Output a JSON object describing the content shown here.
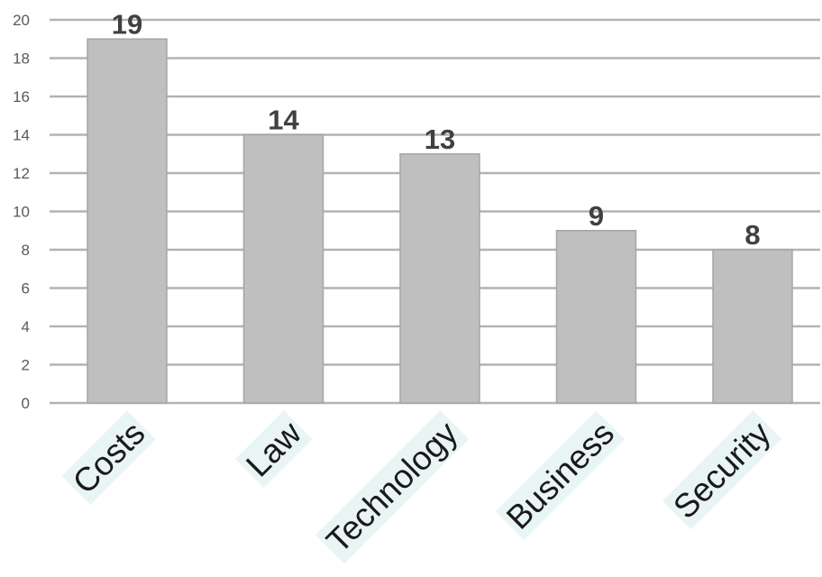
{
  "chart_data": {
    "type": "bar",
    "categories": [
      "Costs",
      "Law",
      "Technology",
      "Business",
      "Security"
    ],
    "values": [
      19,
      14,
      13,
      9,
      8
    ],
    "title": "",
    "xlabel": "",
    "ylabel": "",
    "ylim": [
      0,
      20
    ],
    "yticks": [
      0,
      2,
      4,
      6,
      8,
      10,
      12,
      14,
      16,
      18,
      20
    ],
    "grid": true,
    "legend": "none",
    "bar_color": "#bfbfbf",
    "gridline_color": "#b3b3b3",
    "data_label_color": "#404040",
    "category_label_highlight": "#e9f5f5"
  }
}
